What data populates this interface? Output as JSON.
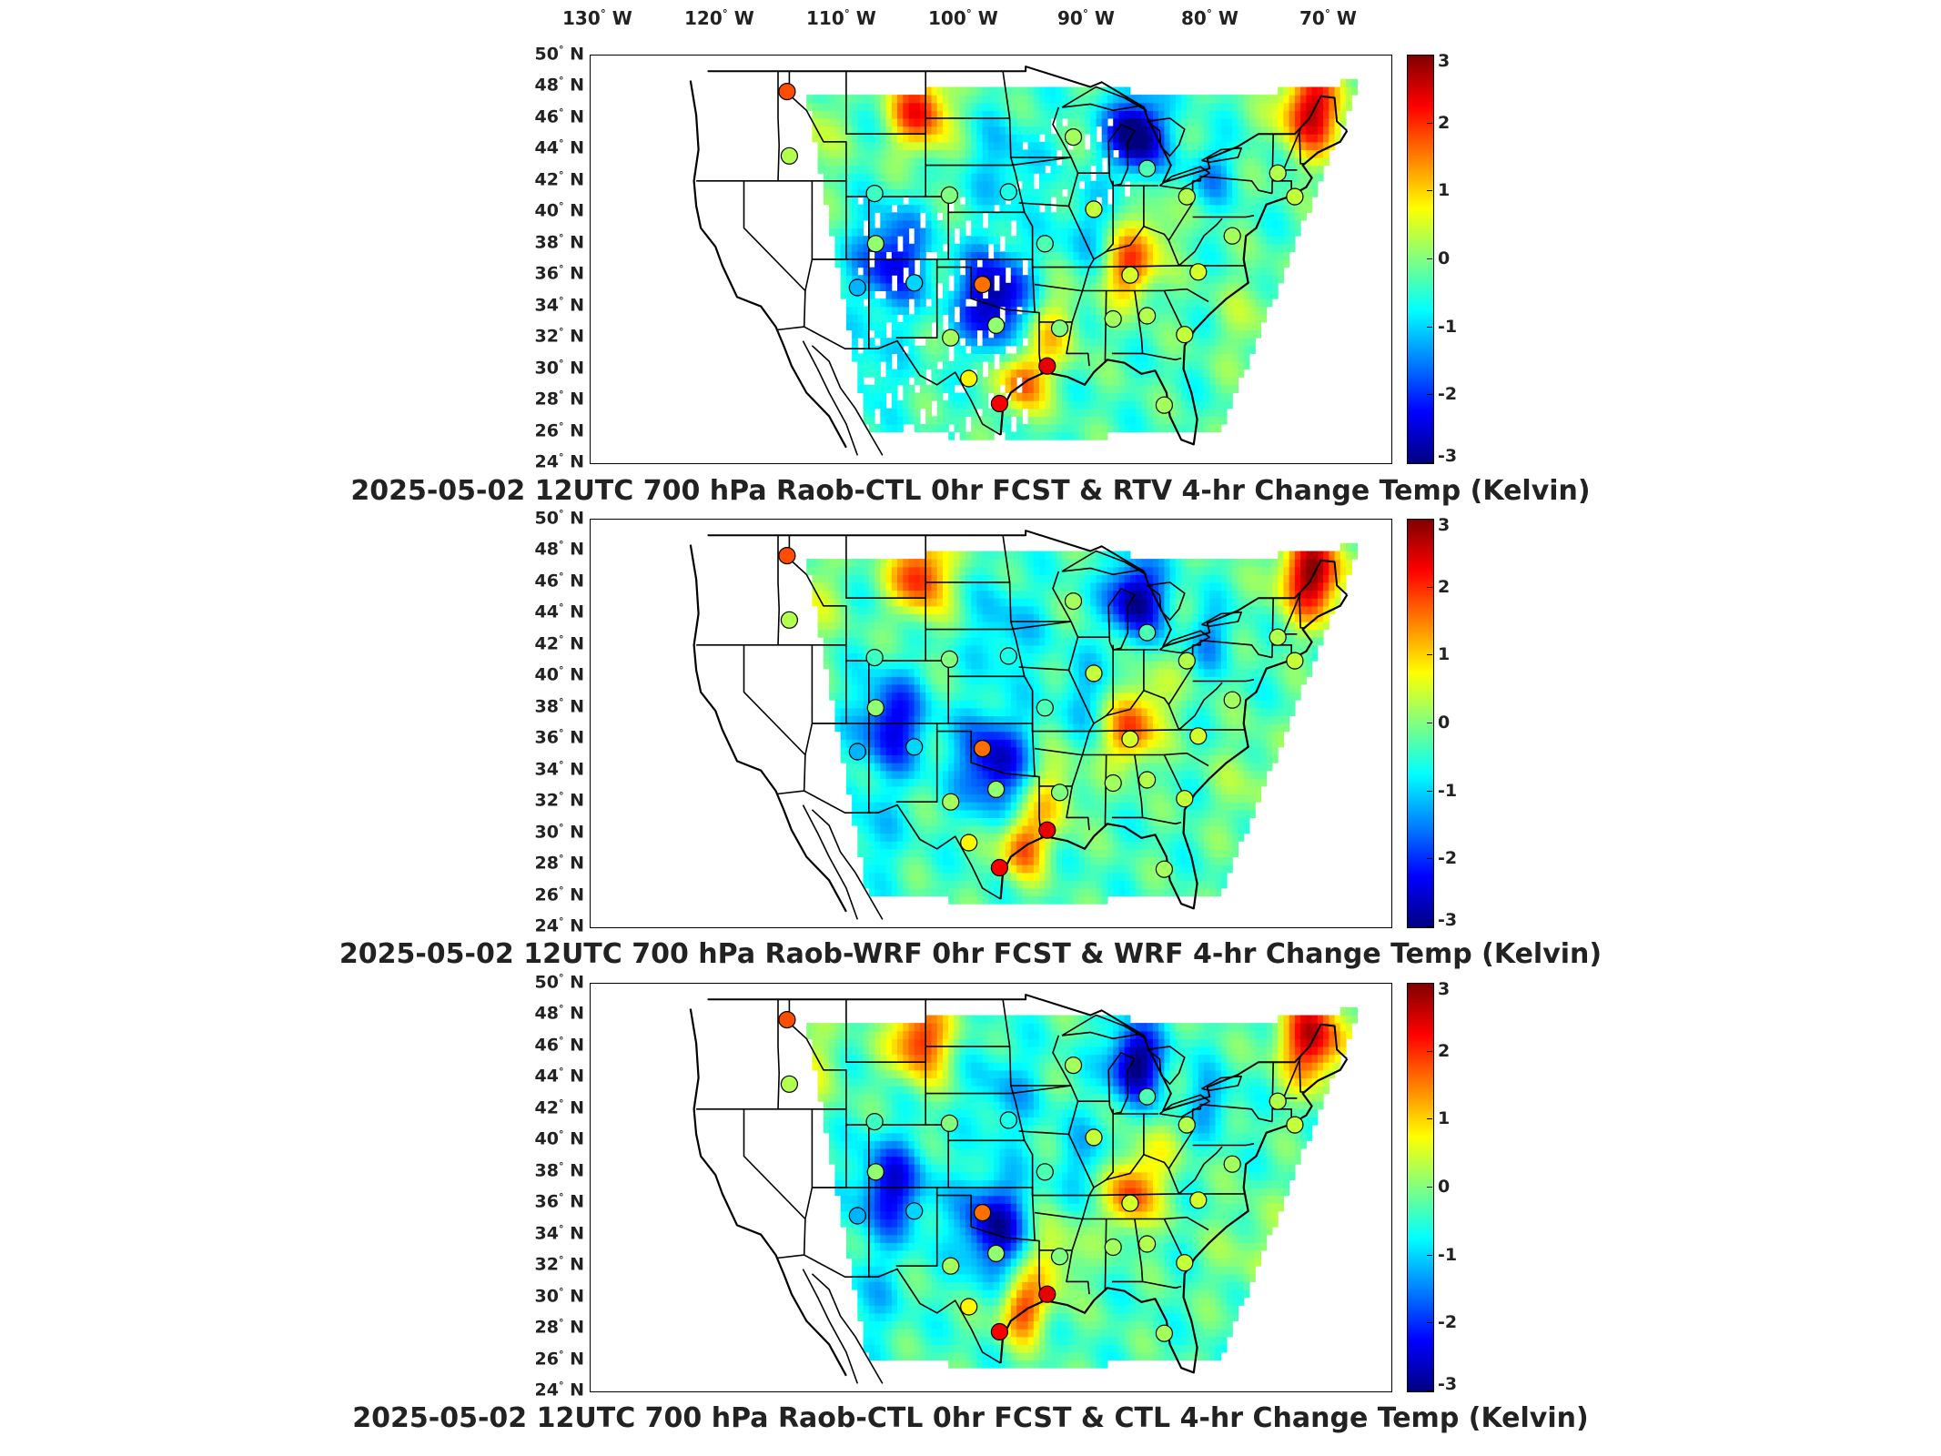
{
  "longitude_labels": [
    "130",
    "120",
    "110",
    "100",
    "90",
    "80",
    "70"
  ],
  "longitude_suffix": "W",
  "latitude_labels": [
    "50",
    "48",
    "46",
    "44",
    "42",
    "40",
    "38",
    "36",
    "34",
    "32",
    "30",
    "28",
    "26",
    "24"
  ],
  "latitude_suffix": "N",
  "degree_symbol": "°",
  "colorbar_ticks": [
    "3",
    "2",
    "1",
    "0",
    "-1",
    "-2",
    "-3"
  ],
  "colorbar": {
    "min": -3,
    "max": 3,
    "units": "Kelvin",
    "colors": [
      "#000080",
      "#0000ff",
      "#0080ff",
      "#00ffff",
      "#80ff80",
      "#ffff00",
      "#ff8000",
      "#ff0000",
      "#800000"
    ]
  },
  "panels": [
    {
      "title": "2025-05-02 12UTC 700 hPa Raob-CTL 0hr FCST & RTV 4-hr Change Temp (Kelvin)"
    },
    {
      "title": "2025-05-02 12UTC 700 hPa Raob-WRF 0hr FCST & WRF 4-hr Change Temp (Kelvin)"
    },
    {
      "title": "2025-05-02 12UTC 700 hPa Raob-CTL 0hr FCST & CTL 4-hr Change Temp (Kelvin)"
    }
  ],
  "raob_station_values": [
    {
      "lon": -116.2,
      "lat": 47.7,
      "v": 1.8
    },
    {
      "lon": -116.0,
      "lat": 43.6,
      "v": 0.3
    },
    {
      "lon": -108.5,
      "lat": 41.2,
      "v": -0.4
    },
    {
      "lon": -108.4,
      "lat": 38.0,
      "v": 0.1
    },
    {
      "lon": -101.9,
      "lat": 41.1,
      "v": 0.0
    },
    {
      "lon": -96.7,
      "lat": 41.3,
      "v": -0.6
    },
    {
      "lon": -91.0,
      "lat": 44.8,
      "v": 0.2
    },
    {
      "lon": -93.5,
      "lat": 38.0,
      "v": -0.3
    },
    {
      "lon": -89.2,
      "lat": 40.2,
      "v": 0.4
    },
    {
      "lon": -84.5,
      "lat": 42.8,
      "v": -0.3
    },
    {
      "lon": -86.0,
      "lat": 36.0,
      "v": 0.5
    },
    {
      "lon": -81.0,
      "lat": 41.0,
      "v": 0.3
    },
    {
      "lon": -80.0,
      "lat": 36.2,
      "v": 0.5
    },
    {
      "lon": -77.0,
      "lat": 38.5,
      "v": 0.2
    },
    {
      "lon": -73.0,
      "lat": 42.5,
      "v": 0.3
    },
    {
      "lon": -71.5,
      "lat": 41.0,
      "v": 0.4
    },
    {
      "lon": -110.0,
      "lat": 35.2,
      "v": -1.2
    },
    {
      "lon": -105.0,
      "lat": 35.5,
      "v": -1.0
    },
    {
      "lon": -99.0,
      "lat": 35.4,
      "v": 1.6
    },
    {
      "lon": -97.8,
      "lat": 32.8,
      "v": 0.1
    },
    {
      "lon": -101.8,
      "lat": 32.0,
      "v": 0.2
    },
    {
      "lon": -92.2,
      "lat": 32.6,
      "v": 0.0
    },
    {
      "lon": -87.5,
      "lat": 33.2,
      "v": 0.2
    },
    {
      "lon": -84.5,
      "lat": 33.4,
      "v": 0.3
    },
    {
      "lon": -81.2,
      "lat": 32.2,
      "v": 0.4
    },
    {
      "lon": -93.3,
      "lat": 30.2,
      "v": 2.4
    },
    {
      "lon": -100.2,
      "lat": 29.4,
      "v": 0.8
    },
    {
      "lon": -97.5,
      "lat": 27.8,
      "v": 2.3
    },
    {
      "lon": -83.0,
      "lat": 27.7,
      "v": 0.2
    }
  ]
}
